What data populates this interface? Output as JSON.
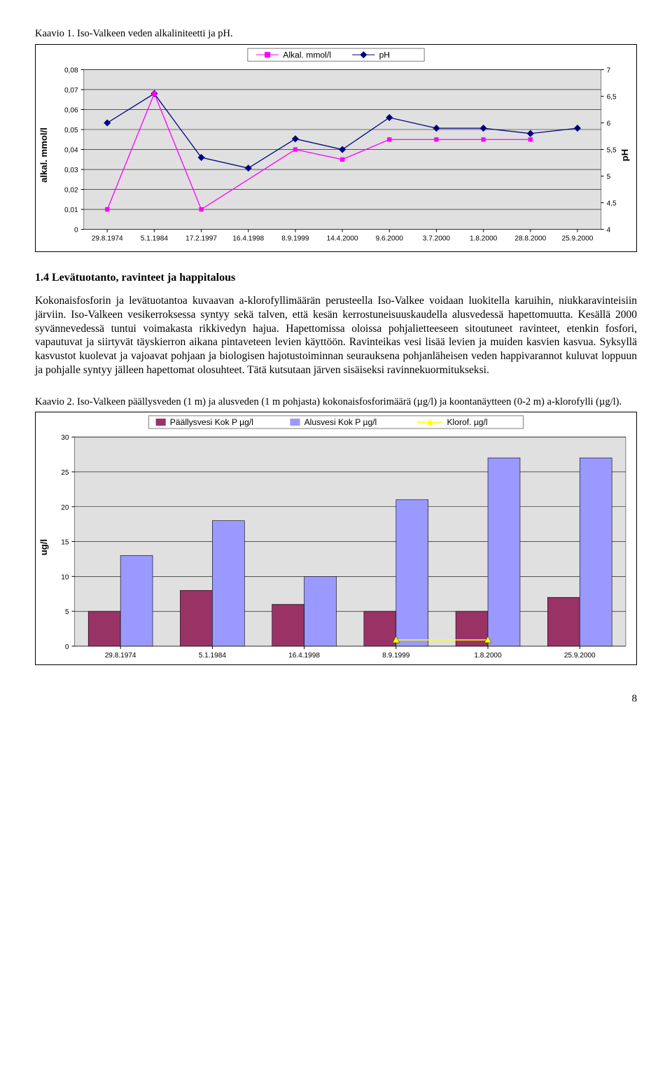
{
  "chart1": {
    "title": "Kaavio 1. Iso-Valkeen veden alkaliniteetti ja pH.",
    "type": "dual-axis-line",
    "background_color": "#e0e0e0",
    "grid_color": "#000000",
    "border_color": "#808080",
    "legend": {
      "items": [
        {
          "label": "Alkal. mmol/l",
          "color": "#ff00ff",
          "marker": "square"
        },
        {
          "label": "pH",
          "color": "#000080",
          "marker": "diamond"
        }
      ]
    },
    "y_left": {
      "label": "alkal. mmol/l",
      "ticks": [
        "0",
        "0,01",
        "0,02",
        "0,03",
        "0,04",
        "0,05",
        "0,06",
        "0,07",
        "0,08"
      ],
      "min": 0,
      "max": 0.08,
      "font_size": 10
    },
    "y_right": {
      "label": "pH",
      "ticks": [
        "4",
        "4,5",
        "5",
        "5,5",
        "6",
        "6,5",
        "7"
      ],
      "min": 4,
      "max": 7,
      "font_size": 10
    },
    "x_categories": [
      "29.8.1974",
      "5.1.1984",
      "17.2.1997",
      "16.4.1998",
      "8.9.1999",
      "14.4.2000",
      "9.6.2000",
      "3.7.2000",
      "1.8.2000",
      "28.8.2000",
      "25.9.2000"
    ],
    "series": {
      "alkal": {
        "color": "#ff00ff",
        "values": [
          0.01,
          0.068,
          0.01,
          null,
          0.04,
          0.035,
          0.045,
          0.045,
          0.045,
          0.045,
          null
        ]
      },
      "ph": {
        "color": "#000080",
        "values": [
          6.0,
          6.55,
          5.35,
          5.15,
          5.7,
          5.5,
          6.1,
          5.9,
          5.9,
          5.8,
          5.9
        ]
      }
    },
    "marker_size": 5
  },
  "section": {
    "heading": "1.4 Levätuotanto, ravinteet ja happitalous",
    "body": "Kokonaisfosforin ja levätuotantoa kuvaavan a-klorofyllimäärän perusteella Iso-Valkee voidaan luokitella karuihin, niukkaravinteisiin järviin. Iso-Valkeen vesikerroksessa syntyy sekä talven, että kesän kerrostuneisuuskaudella alusvedessä hapettomuutta. Kesällä 2000 syvännevedessä tuntui voimakasta rikkivedyn hajua. Hapettomissa oloissa pohjalietteeseen sitoutuneet ravinteet, etenkin fosfori, vapautuvat ja siirtyvät täyskierron aikana pintaveteen levien käyttöön. Ravinteikas vesi lisää levien ja muiden kasvien kasvua. Syksyllä kasvustot kuolevat ja vajoavat pohjaan ja biologisen hajotustoiminnan seurauksena pohjanläheisen veden happivarannot kuluvat loppuun ja pohjalle syntyy jälleen hapettomat olosuhteet. Tätä kutsutaan järven sisäiseksi ravinnekuormitukseksi."
  },
  "chart2": {
    "title": "Kaavio 2. Iso-Valkeen päällysveden (1 m) ja alusveden (1 m pohjasta) kokonaisfosforimäärä (µg/l) ja koontanäytteen (0-2 m) a-klorofylli (µg/l).",
    "type": "grouped-bar-with-line",
    "background_color": "#e0e0e0",
    "grid_color": "#000000",
    "border_color": "#808080",
    "legend": {
      "items": [
        {
          "label": "Päällysvesi Kok P µg/l",
          "color": "#993366",
          "type": "box"
        },
        {
          "label": "Alusvesi Kok P µg/l",
          "color": "#9999ff",
          "type": "box"
        },
        {
          "label": "Klorof. µg/l",
          "color": "#ffff00",
          "type": "line"
        }
      ]
    },
    "y": {
      "label": "ug/l",
      "ticks": [
        "0",
        "5",
        "10",
        "15",
        "20",
        "25",
        "30"
      ],
      "min": 0,
      "max": 30,
      "font_size": 10
    },
    "x_categories": [
      "29.8.1974",
      "5.1.1984",
      "16.4.1998",
      "8.9.1999",
      "1.8.2000",
      "25.9.2000"
    ],
    "series": {
      "paallys": {
        "color": "#993366",
        "values": [
          5,
          8,
          6,
          5,
          5,
          7
        ]
      },
      "alus": {
        "color": "#9999ff",
        "values": [
          13,
          18,
          10,
          21,
          27,
          27
        ]
      },
      "klorof": {
        "color": "#ffff00",
        "values": [
          null,
          null,
          null,
          0.9,
          0.9,
          null
        ]
      }
    },
    "bar_width": 0.35
  },
  "page_number": "8"
}
